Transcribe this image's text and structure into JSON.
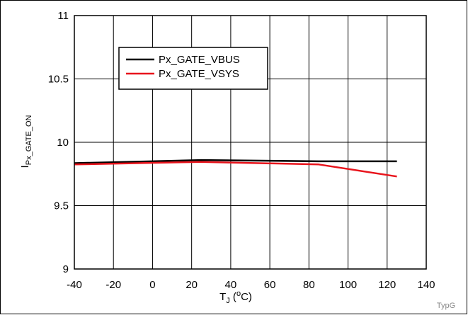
{
  "chart_data": {
    "type": "line",
    "xlabel": {
      "base": "T",
      "sub": "J",
      "unit_pre": " (",
      "sup": "o",
      "unit_post": "C)"
    },
    "ylabel": {
      "base": "I",
      "sub": "Px_GATE_ON"
    },
    "xlim": [
      -40,
      140
    ],
    "ylim": [
      9,
      11
    ],
    "xticks": [
      -40,
      -20,
      0,
      20,
      40,
      60,
      80,
      100,
      120,
      140
    ],
    "yticks": [
      9,
      9.5,
      10,
      10.5,
      11
    ],
    "xtick_labels": [
      "-40",
      "-20",
      "0",
      "20",
      "40",
      "60",
      "80",
      "100",
      "120",
      "140"
    ],
    "ytick_labels": [
      "9",
      "9.5",
      "10",
      "10.5",
      "11"
    ],
    "grid": true,
    "legend_position": "upper-left",
    "series": [
      {
        "name": "Px_GATE_VBUS",
        "color": "#000000",
        "x": [
          -40,
          25,
          85,
          125
        ],
        "y": [
          9.835,
          9.86,
          9.85,
          9.85
        ]
      },
      {
        "name": "Px_GATE_VSYS",
        "color": "#e8141c",
        "x": [
          -40,
          25,
          85,
          125
        ],
        "y": [
          9.825,
          9.845,
          9.825,
          9.73
        ]
      }
    ],
    "footnote": "TypG"
  }
}
